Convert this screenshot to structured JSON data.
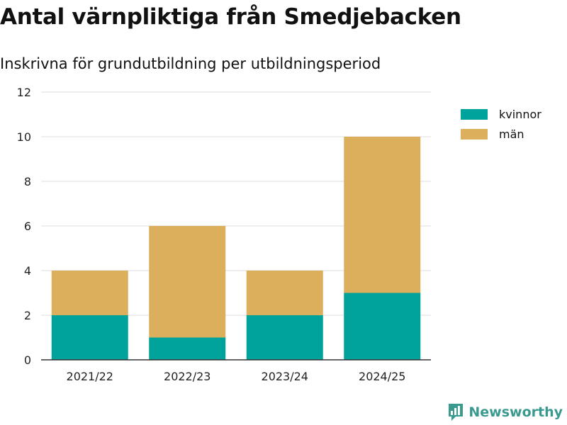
{
  "title": "Antal värnpliktiga från Smedjebacken",
  "subtitle": "Inskrivna för grundutbildning per utbildningsperiod",
  "brand": "Newsworthy",
  "colors": {
    "kvinnor": "#00a39b",
    "man": "#dbaf5c",
    "grid": "#dddddd",
    "axis": "#333333",
    "brand": "#3a9a8f"
  },
  "chart_data": {
    "type": "bar",
    "stacked": true,
    "categories": [
      "2021/22",
      "2022/23",
      "2023/24",
      "2024/25"
    ],
    "series": [
      {
        "name": "kvinnor",
        "values": [
          2,
          1,
          2,
          3
        ]
      },
      {
        "name": "män",
        "values": [
          2,
          5,
          2,
          7
        ]
      }
    ],
    "ylim": [
      0,
      12
    ],
    "yticks": [
      "0",
      "2",
      "4",
      "6",
      "8",
      "10",
      "12"
    ],
    "title": "Antal värnpliktiga från Smedjebacken",
    "xlabel": "",
    "ylabel": "",
    "grid": true,
    "legend": "right"
  }
}
